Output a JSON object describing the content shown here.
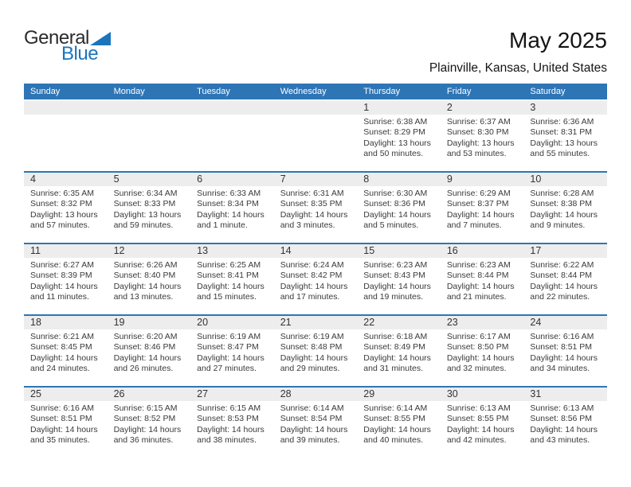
{
  "logo": {
    "text_top": "General",
    "text_bottom": "Blue"
  },
  "title": "May 2025",
  "location": "Plainville, Kansas, United States",
  "weekdays": [
    "Sunday",
    "Monday",
    "Tuesday",
    "Wednesday",
    "Thursday",
    "Friday",
    "Saturday"
  ],
  "colors": {
    "header_bar": "#2E75B6",
    "week_divider": "#2E75B6",
    "day_strip": "#EDEDED",
    "logo_blue": "#1B75BC",
    "logo_dark": "#2B2B2B",
    "text": "#3A3A3A"
  },
  "weeks": [
    [
      null,
      null,
      null,
      null,
      {
        "day": "1",
        "lines": [
          "Sunrise: 6:38 AM",
          "Sunset: 8:29 PM",
          "Daylight: 13 hours",
          "and 50 minutes."
        ]
      },
      {
        "day": "2",
        "lines": [
          "Sunrise: 6:37 AM",
          "Sunset: 8:30 PM",
          "Daylight: 13 hours",
          "and 53 minutes."
        ]
      },
      {
        "day": "3",
        "lines": [
          "Sunrise: 6:36 AM",
          "Sunset: 8:31 PM",
          "Daylight: 13 hours",
          "and 55 minutes."
        ]
      }
    ],
    [
      {
        "day": "4",
        "lines": [
          "Sunrise: 6:35 AM",
          "Sunset: 8:32 PM",
          "Daylight: 13 hours",
          "and 57 minutes."
        ]
      },
      {
        "day": "5",
        "lines": [
          "Sunrise: 6:34 AM",
          "Sunset: 8:33 PM",
          "Daylight: 13 hours",
          "and 59 minutes."
        ]
      },
      {
        "day": "6",
        "lines": [
          "Sunrise: 6:33 AM",
          "Sunset: 8:34 PM",
          "Daylight: 14 hours",
          "and 1 minute."
        ]
      },
      {
        "day": "7",
        "lines": [
          "Sunrise: 6:31 AM",
          "Sunset: 8:35 PM",
          "Daylight: 14 hours",
          "and 3 minutes."
        ]
      },
      {
        "day": "8",
        "lines": [
          "Sunrise: 6:30 AM",
          "Sunset: 8:36 PM",
          "Daylight: 14 hours",
          "and 5 minutes."
        ]
      },
      {
        "day": "9",
        "lines": [
          "Sunrise: 6:29 AM",
          "Sunset: 8:37 PM",
          "Daylight: 14 hours",
          "and 7 minutes."
        ]
      },
      {
        "day": "10",
        "lines": [
          "Sunrise: 6:28 AM",
          "Sunset: 8:38 PM",
          "Daylight: 14 hours",
          "and 9 minutes."
        ]
      }
    ],
    [
      {
        "day": "11",
        "lines": [
          "Sunrise: 6:27 AM",
          "Sunset: 8:39 PM",
          "Daylight: 14 hours",
          "and 11 minutes."
        ]
      },
      {
        "day": "12",
        "lines": [
          "Sunrise: 6:26 AM",
          "Sunset: 8:40 PM",
          "Daylight: 14 hours",
          "and 13 minutes."
        ]
      },
      {
        "day": "13",
        "lines": [
          "Sunrise: 6:25 AM",
          "Sunset: 8:41 PM",
          "Daylight: 14 hours",
          "and 15 minutes."
        ]
      },
      {
        "day": "14",
        "lines": [
          "Sunrise: 6:24 AM",
          "Sunset: 8:42 PM",
          "Daylight: 14 hours",
          "and 17 minutes."
        ]
      },
      {
        "day": "15",
        "lines": [
          "Sunrise: 6:23 AM",
          "Sunset: 8:43 PM",
          "Daylight: 14 hours",
          "and 19 minutes."
        ]
      },
      {
        "day": "16",
        "lines": [
          "Sunrise: 6:23 AM",
          "Sunset: 8:44 PM",
          "Daylight: 14 hours",
          "and 21 minutes."
        ]
      },
      {
        "day": "17",
        "lines": [
          "Sunrise: 6:22 AM",
          "Sunset: 8:44 PM",
          "Daylight: 14 hours",
          "and 22 minutes."
        ]
      }
    ],
    [
      {
        "day": "18",
        "lines": [
          "Sunrise: 6:21 AM",
          "Sunset: 8:45 PM",
          "Daylight: 14 hours",
          "and 24 minutes."
        ]
      },
      {
        "day": "19",
        "lines": [
          "Sunrise: 6:20 AM",
          "Sunset: 8:46 PM",
          "Daylight: 14 hours",
          "and 26 minutes."
        ]
      },
      {
        "day": "20",
        "lines": [
          "Sunrise: 6:19 AM",
          "Sunset: 8:47 PM",
          "Daylight: 14 hours",
          "and 27 minutes."
        ]
      },
      {
        "day": "21",
        "lines": [
          "Sunrise: 6:19 AM",
          "Sunset: 8:48 PM",
          "Daylight: 14 hours",
          "and 29 minutes."
        ]
      },
      {
        "day": "22",
        "lines": [
          "Sunrise: 6:18 AM",
          "Sunset: 8:49 PM",
          "Daylight: 14 hours",
          "and 31 minutes."
        ]
      },
      {
        "day": "23",
        "lines": [
          "Sunrise: 6:17 AM",
          "Sunset: 8:50 PM",
          "Daylight: 14 hours",
          "and 32 minutes."
        ]
      },
      {
        "day": "24",
        "lines": [
          "Sunrise: 6:16 AM",
          "Sunset: 8:51 PM",
          "Daylight: 14 hours",
          "and 34 minutes."
        ]
      }
    ],
    [
      {
        "day": "25",
        "lines": [
          "Sunrise: 6:16 AM",
          "Sunset: 8:51 PM",
          "Daylight: 14 hours",
          "and 35 minutes."
        ]
      },
      {
        "day": "26",
        "lines": [
          "Sunrise: 6:15 AM",
          "Sunset: 8:52 PM",
          "Daylight: 14 hours",
          "and 36 minutes."
        ]
      },
      {
        "day": "27",
        "lines": [
          "Sunrise: 6:15 AM",
          "Sunset: 8:53 PM",
          "Daylight: 14 hours",
          "and 38 minutes."
        ]
      },
      {
        "day": "28",
        "lines": [
          "Sunrise: 6:14 AM",
          "Sunset: 8:54 PM",
          "Daylight: 14 hours",
          "and 39 minutes."
        ]
      },
      {
        "day": "29",
        "lines": [
          "Sunrise: 6:14 AM",
          "Sunset: 8:55 PM",
          "Daylight: 14 hours",
          "and 40 minutes."
        ]
      },
      {
        "day": "30",
        "lines": [
          "Sunrise: 6:13 AM",
          "Sunset: 8:55 PM",
          "Daylight: 14 hours",
          "and 42 minutes."
        ]
      },
      {
        "day": "31",
        "lines": [
          "Sunrise: 6:13 AM",
          "Sunset: 8:56 PM",
          "Daylight: 14 hours",
          "and 43 minutes."
        ]
      }
    ]
  ]
}
